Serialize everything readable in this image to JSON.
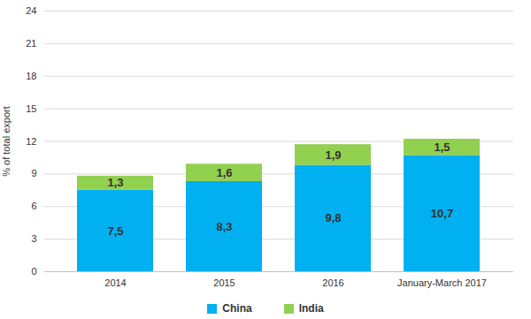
{
  "chart_data": {
    "type": "bar",
    "stacked": true,
    "y_label": "% of total export",
    "categories": [
      "2014",
      "2015",
      "2016",
      "January-March 2017"
    ],
    "series": [
      {
        "name": "China",
        "color": "#00b0f0",
        "values": [
          7.5,
          8.3,
          9.8,
          10.7
        ],
        "value_labels": [
          "7,5",
          "8,3",
          "9,8",
          "10,7"
        ]
      },
      {
        "name": "India",
        "color": "#92d050",
        "values": [
          1.3,
          1.6,
          1.9,
          1.5
        ],
        "value_labels": [
          "1,3",
          "1,6",
          "1,9",
          "1,5"
        ]
      }
    ],
    "ylim": [
      0,
      24
    ],
    "yticks": [
      0,
      3,
      6,
      9,
      12,
      15,
      18,
      21,
      24
    ],
    "grid": true,
    "data_labels": true,
    "legend": "bottom"
  }
}
